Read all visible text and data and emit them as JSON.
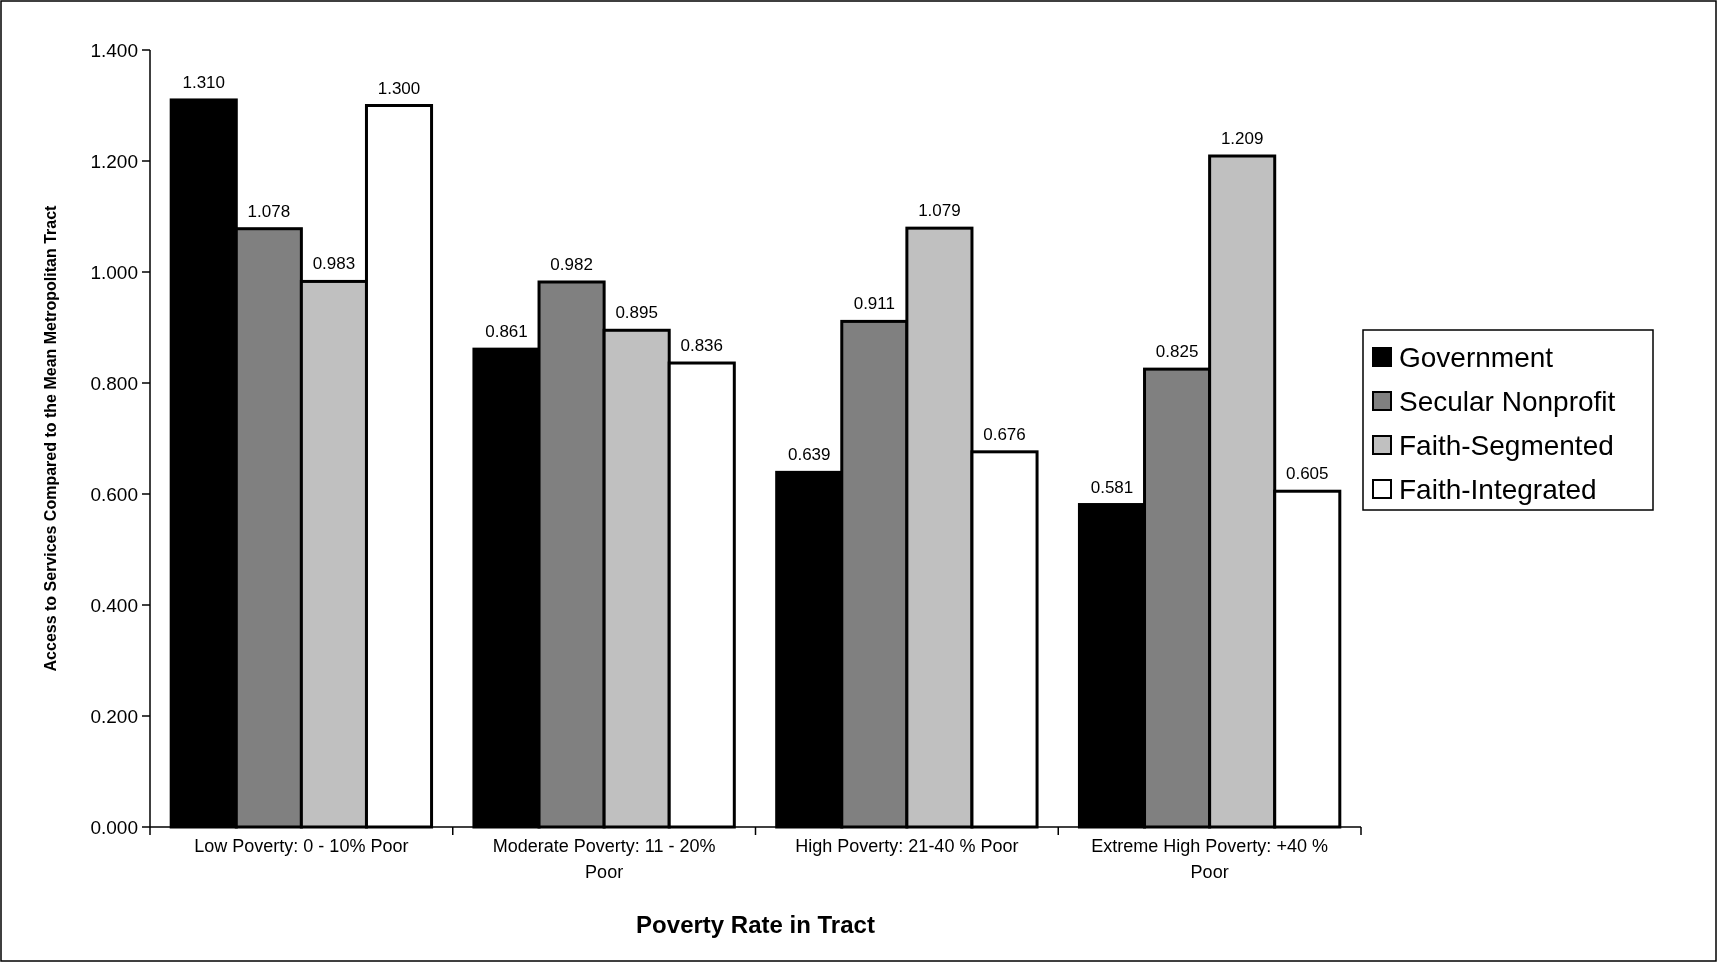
{
  "chart_data": {
    "type": "bar",
    "xlabel": "Poverty Rate in Tract",
    "ylabel": "Access to Services Compared to the Mean Metropolitan Tract",
    "categories": [
      "Low Poverty: 0 - 10% Poor",
      "Moderate Poverty: 11 - 20% Poor",
      "High Poverty: 21-40 % Poor",
      "Extreme High Poverty: +40 % Poor"
    ],
    "series": [
      {
        "name": "Government",
        "color": "#000000",
        "values": [
          1.31,
          0.861,
          0.639,
          0.581
        ],
        "value_labels": [
          "1.310",
          "0.861",
          "0.639",
          "0.581"
        ]
      },
      {
        "name": "Secular Nonprofit",
        "color": "#808080",
        "values": [
          1.078,
          0.982,
          0.911,
          0.825
        ],
        "value_labels": [
          "1.078",
          "0.982",
          "0.911",
          "0.825"
        ]
      },
      {
        "name": "Faith-Segmented",
        "color": "#c0c0c0",
        "values": [
          0.983,
          0.895,
          1.079,
          1.209
        ],
        "value_labels": [
          "0.983",
          "0.895",
          "1.079",
          "1.209"
        ]
      },
      {
        "name": "Faith-Integrated",
        "color": "#ffffff",
        "values": [
          1.3,
          0.836,
          0.676,
          0.605
        ],
        "value_labels": [
          "1.300",
          "0.836",
          "0.676",
          "0.605"
        ]
      }
    ],
    "ylim": [
      0,
      1.4
    ],
    "yticks": [
      {
        "value": 0,
        "label": "0.000"
      },
      {
        "value": 0.2,
        "label": "0.200"
      },
      {
        "value": 0.4,
        "label": "0.400"
      },
      {
        "value": 0.6,
        "label": "0.600"
      },
      {
        "value": 0.8,
        "label": "0.800"
      },
      {
        "value": 1,
        "label": "1.000"
      },
      {
        "value": 1.2,
        "label": "1.200"
      },
      {
        "value": 1.4,
        "label": "1.400"
      }
    ],
    "grid": false,
    "legend": "right"
  }
}
